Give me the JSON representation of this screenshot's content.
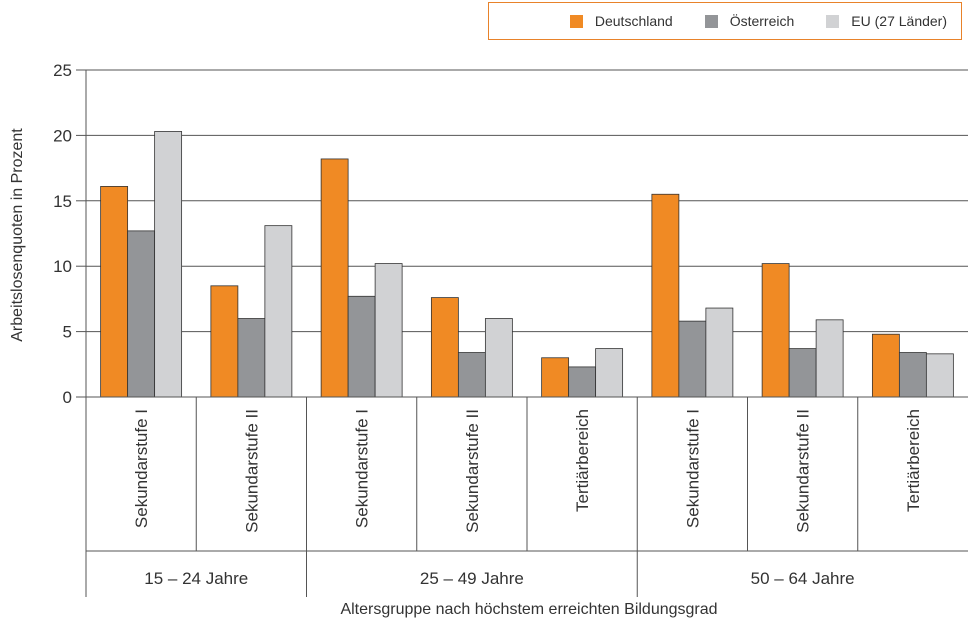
{
  "chart_data": {
    "type": "bar",
    "ylabel": "Arbeitslosenquoten in Prozent",
    "xlabel": "Altersgruppe nach höchstem erreichten Bildungsgrad",
    "ylim": [
      0,
      25
    ],
    "yticks": [
      0,
      5,
      10,
      15,
      20,
      25
    ],
    "grid": true,
    "legend_position": "top-right",
    "categories": [
      "Sekundarstufe I",
      "Sekundarstufe II",
      "Sekundarstufe I",
      "Sekundarstufe II",
      "Tertiärbereich",
      "Sekundarstufe I",
      "Sekundarstufe II",
      "Tertiärbereich"
    ],
    "groups": [
      {
        "label": "15 – 24 Jahre",
        "count": 2
      },
      {
        "label": "25 – 49 Jahre",
        "count": 3
      },
      {
        "label": "50 – 64 Jahre",
        "count": 3
      }
    ],
    "series": [
      {
        "name": "Deutschland",
        "color": "#f08a24",
        "values": [
          16.1,
          8.5,
          18.2,
          7.6,
          3.0,
          15.5,
          10.2,
          4.8
        ]
      },
      {
        "name": "Österreich",
        "color": "#939598",
        "values": [
          12.7,
          6.0,
          7.7,
          3.4,
          2.3,
          5.8,
          3.7,
          3.4
        ]
      },
      {
        "name": "EU (27 Länder)",
        "color": "#d1d2d4",
        "values": [
          20.3,
          13.1,
          10.2,
          6.0,
          3.7,
          6.8,
          5.9,
          3.3
        ]
      }
    ]
  }
}
